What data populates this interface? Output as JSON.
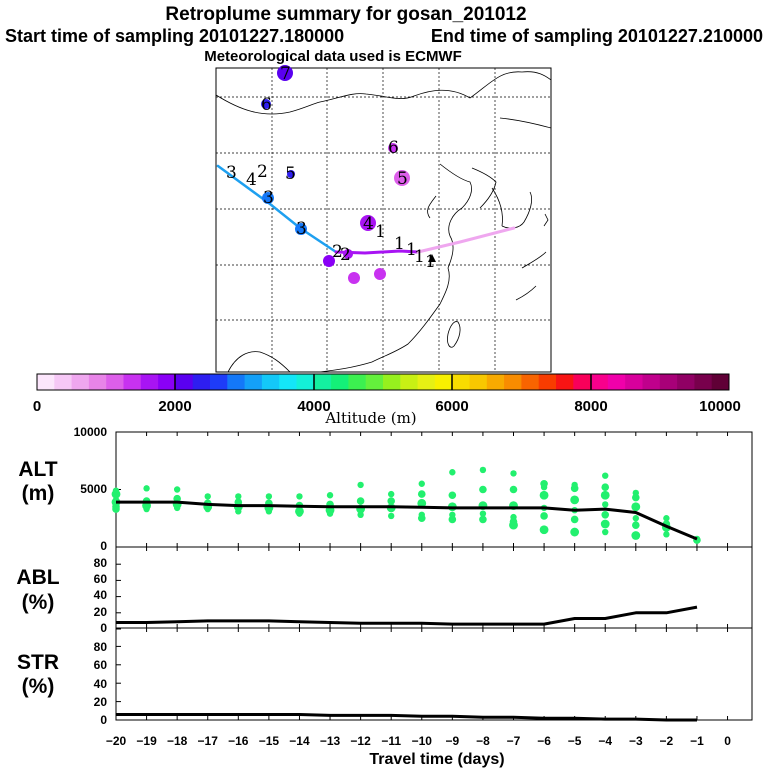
{
  "titles": {
    "main": "Retroplume summary for gosan_201012",
    "start": "Start time of sampling 20101227.180000",
    "end": "End time of sampling 20101227.210000",
    "met": "Meteorological data used is ECMWF"
  },
  "colorbar": {
    "label": "Altitude (m)",
    "ticks": [
      "0",
      "2000",
      "4000",
      "6000",
      "8000",
      "10000"
    ],
    "colors": [
      "#fce6fc",
      "#f6c8f6",
      "#efa7ef",
      "#e884e8",
      "#dd5fea",
      "#c832f0",
      "#a814f3",
      "#8a00f6",
      "#5a00f0",
      "#2e1ef0",
      "#1e3cf8",
      "#1478f8",
      "#14a0f8",
      "#14c8f8",
      "#14e6f8",
      "#14f0d8",
      "#14f0a0",
      "#14f078",
      "#3cf050",
      "#64f03c",
      "#96f01e",
      "#c8f014",
      "#e6f014",
      "#f8f000",
      "#f8dc00",
      "#f8c800",
      "#f8aa00",
      "#f88c00",
      "#f86400",
      "#f83c00",
      "#f81414",
      "#f8005a",
      "#f8008c",
      "#f000aa",
      "#d8009c",
      "#c0008c",
      "#a80078",
      "#900064",
      "#78004c",
      "#600036"
    ]
  },
  "map": {
    "track_labels": [
      "1",
      "1",
      "1",
      "1",
      "1",
      "2",
      "2",
      "2",
      "3",
      "3",
      "3",
      "4",
      "4",
      "5",
      "5",
      "6",
      "6",
      "7"
    ],
    "site": "gosan"
  },
  "xaxis": {
    "label": "Travel time (days)",
    "ticks": [
      "−20",
      "−19",
      "−18",
      "−17",
      "−16",
      "−15",
      "−14",
      "−13",
      "−12",
      "−11",
      "−10",
      "−9",
      "−8",
      "−7",
      "−6",
      "−5",
      "−4",
      "−3",
      "−2",
      "−1",
      "0"
    ]
  },
  "chart_data": [
    {
      "type": "line",
      "name": "alt",
      "panel_label": [
        "ALT",
        "(m)"
      ],
      "ylabel": "ALT (m)",
      "ylim": [
        0,
        10000
      ],
      "yticks": [
        "0",
        "5000",
        "10000"
      ],
      "x": [
        -20,
        -19,
        -18,
        -17,
        -16,
        -15,
        -14,
        -13,
        -12,
        -11,
        -10,
        -9,
        -8,
        -7,
        -6,
        -5,
        -4,
        -3,
        -2,
        -1
      ],
      "values": [
        3900,
        3900,
        3900,
        3700,
        3600,
        3600,
        3550,
        3500,
        3500,
        3500,
        3450,
        3400,
        3400,
        3400,
        3400,
        3200,
        3300,
        3000,
        1800,
        700
      ],
      "scatter_color": "#22f06e",
      "scatter": [
        {
          "x": -20,
          "y": [
            4900,
            3500,
            3900,
            4100,
            3300,
            4600
          ]
        },
        {
          "x": -19,
          "y": [
            5100,
            4000,
            3600,
            3300
          ]
        },
        {
          "x": -18,
          "y": [
            5000,
            4200,
            3700,
            3400
          ]
        },
        {
          "x": -17,
          "y": [
            4400,
            3800,
            3500,
            3300
          ]
        },
        {
          "x": -16,
          "y": [
            4400,
            3900,
            3500,
            3100
          ]
        },
        {
          "x": -15,
          "y": [
            4400,
            3800,
            3400,
            3100
          ]
        },
        {
          "x": -14,
          "y": [
            4400,
            3600,
            3100,
            2900
          ]
        },
        {
          "x": -13,
          "y": [
            4500,
            3700,
            3200,
            2900
          ]
        },
        {
          "x": -12,
          "y": [
            5400,
            4000,
            3300,
            2800
          ]
        },
        {
          "x": -11,
          "y": [
            4600,
            4000,
            3400,
            2700
          ]
        },
        {
          "x": -10,
          "y": [
            5500,
            4600,
            3800,
            2800,
            2500
          ]
        },
        {
          "x": -9,
          "y": [
            6500,
            4500,
            3500,
            2800,
            2400
          ]
        },
        {
          "x": -8,
          "y": [
            6700,
            5000,
            3600,
            2900,
            2400
          ]
        },
        {
          "x": -7,
          "y": [
            6400,
            5000,
            3600,
            2600,
            2200,
            1900
          ]
        },
        {
          "x": -6,
          "y": [
            5200,
            5500,
            4500,
            3400,
            2700,
            1500
          ]
        },
        {
          "x": -5,
          "y": [
            5400,
            5100,
            4100,
            3200,
            2400,
            1300
          ]
        },
        {
          "x": -4,
          "y": [
            6200,
            5200,
            4500,
            3700,
            2800,
            2000,
            1300
          ]
        },
        {
          "x": -3,
          "y": [
            4700,
            4300,
            3500,
            2500,
            1900,
            1000
          ]
        },
        {
          "x": -2,
          "y": [
            2500,
            2000,
            1700,
            1100
          ]
        },
        {
          "x": -1,
          "y": [
            700,
            600
          ]
        }
      ]
    },
    {
      "type": "line",
      "name": "abl",
      "panel_label": [
        "ABL",
        "(%)"
      ],
      "ylabel": "ABL (%)",
      "ylim": [
        0,
        100
      ],
      "yticks": [
        "0",
        "20",
        "40",
        "60",
        "80"
      ],
      "x": [
        -20,
        -19,
        -18,
        -17,
        -16,
        -15,
        -14,
        -13,
        -12,
        -11,
        -10,
        -9,
        -8,
        -7,
        -6,
        -5,
        -4,
        -3,
        -2,
        -1
      ],
      "values": [
        8,
        8,
        9,
        10,
        10,
        10,
        9,
        8,
        7,
        7,
        7,
        6,
        6,
        6,
        6,
        13,
        13,
        20,
        20,
        27
      ]
    },
    {
      "type": "line",
      "name": "str",
      "panel_label": [
        "STR",
        "(%)"
      ],
      "ylabel": "STR (%)",
      "ylim": [
        0,
        100
      ],
      "yticks": [
        "0",
        "20",
        "40",
        "60",
        "80"
      ],
      "x": [
        -20,
        -19,
        -18,
        -17,
        -16,
        -15,
        -14,
        -13,
        -12,
        -11,
        -10,
        -9,
        -8,
        -7,
        -6,
        -5,
        -4,
        -3,
        -2,
        -1
      ],
      "values": [
        6,
        6,
        6,
        6,
        6,
        6,
        6,
        5,
        5,
        5,
        4,
        4,
        3,
        3,
        2,
        2,
        1,
        1,
        0,
        0
      ]
    }
  ]
}
